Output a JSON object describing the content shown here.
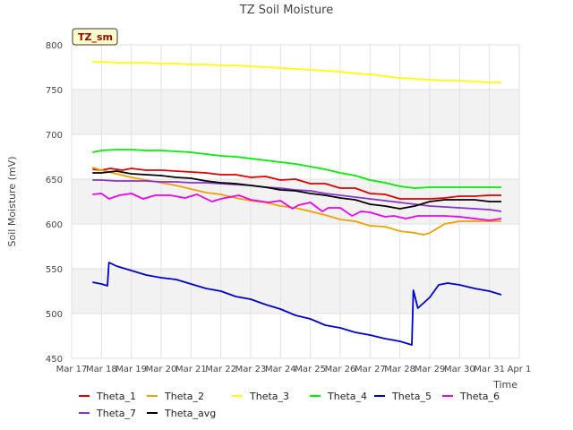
{
  "chart_data": {
    "type": "line",
    "title": "TZ Soil Moisture",
    "xlabel": "Time",
    "ylabel": "Soil Moisture (mV)",
    "badge": "TZ_sm",
    "ylim": [
      450,
      800
    ],
    "xlim": [
      0,
      15
    ],
    "yticks": [
      450,
      500,
      550,
      600,
      650,
      700,
      750,
      800
    ],
    "xticks": [
      {
        "v": 0,
        "label": "Mar 17"
      },
      {
        "v": 1,
        "label": "Mar 18"
      },
      {
        "v": 2,
        "label": "Mar 19"
      },
      {
        "v": 3,
        "label": "Mar 20"
      },
      {
        "v": 4,
        "label": "Mar 21"
      },
      {
        "v": 5,
        "label": "Mar 22"
      },
      {
        "v": 6,
        "label": "Mar 23"
      },
      {
        "v": 7,
        "label": "Mar 24"
      },
      {
        "v": 8,
        "label": "Mar 25"
      },
      {
        "v": 9,
        "label": "Mar 26"
      },
      {
        "v": 10,
        "label": "Mar 27"
      },
      {
        "v": 11,
        "label": "Mar 28"
      },
      {
        "v": 12,
        "label": "Mar 29"
      },
      {
        "v": 13,
        "label": "Mar 30"
      },
      {
        "v": 14,
        "label": "Mar 31"
      },
      {
        "v": 15,
        "label": "Apr 1"
      }
    ],
    "series": [
      {
        "name": "Theta_1",
        "color": "#dd0000",
        "x": [
          0.7,
          1.0,
          1.3,
          1.7,
          2.0,
          2.5,
          3.0,
          3.5,
          4.0,
          4.5,
          5.0,
          5.5,
          6.0,
          6.5,
          7.0,
          7.5,
          8.0,
          8.5,
          9.0,
          9.5,
          10.0,
          10.5,
          11.0,
          11.5,
          12.0,
          12.5,
          13.0,
          13.5,
          14.0,
          14.4
        ],
        "y": [
          661,
          660,
          662,
          660,
          662,
          660,
          660,
          659,
          658,
          657,
          655,
          655,
          652,
          653,
          649,
          650,
          645,
          645,
          640,
          640,
          634,
          633,
          628,
          628,
          628,
          629,
          631,
          631,
          632,
          632
        ]
      },
      {
        "name": "Theta_2",
        "color": "#f0a000",
        "x": [
          0.7,
          1.0,
          1.5,
          2.0,
          2.5,
          3.0,
          3.5,
          4.0,
          4.5,
          5.0,
          5.5,
          6.0,
          6.5,
          7.0,
          7.5,
          8.0,
          8.5,
          9.0,
          9.5,
          10.0,
          10.5,
          11.0,
          11.5,
          11.8,
          12.0,
          12.5,
          13.0,
          13.5,
          14.0,
          14.4
        ],
        "y": [
          663,
          660,
          656,
          652,
          649,
          646,
          643,
          639,
          635,
          633,
          629,
          626,
          624,
          620,
          618,
          614,
          610,
          605,
          603,
          598,
          597,
          592,
          590,
          588,
          590,
          600,
          603,
          603,
          603,
          603
        ]
      },
      {
        "name": "Theta_3",
        "color": "#ffff00",
        "x": [
          0.7,
          1.0,
          1.5,
          2.0,
          2.5,
          3.0,
          3.5,
          4.0,
          4.5,
          5.0,
          5.5,
          6.0,
          6.5,
          7.0,
          7.5,
          8.0,
          8.5,
          9.0,
          9.5,
          10.0,
          10.5,
          11.0,
          11.5,
          12.0,
          12.5,
          13.0,
          13.5,
          14.0,
          14.4
        ],
        "y": [
          781,
          781,
          780,
          780,
          780,
          779,
          779,
          778,
          778,
          777,
          777,
          776,
          775,
          774,
          773,
          772,
          771,
          770,
          768,
          767,
          765,
          763,
          762,
          761,
          760,
          760,
          759,
          758,
          758
        ]
      },
      {
        "name": "Theta_4",
        "color": "#00ee00",
        "x": [
          0.7,
          1.0,
          1.5,
          2.0,
          2.5,
          3.0,
          3.5,
          4.0,
          4.5,
          5.0,
          5.5,
          6.0,
          6.5,
          7.0,
          7.5,
          8.0,
          8.5,
          9.0,
          9.5,
          10.0,
          10.5,
          11.0,
          11.5,
          12.0,
          12.5,
          13.0,
          13.5,
          14.0,
          14.4
        ],
        "y": [
          680,
          682,
          683,
          683,
          682,
          682,
          681,
          680,
          678,
          676,
          675,
          673,
          671,
          669,
          667,
          664,
          661,
          657,
          654,
          649,
          646,
          642,
          640,
          641,
          641,
          641,
          641,
          641,
          641
        ]
      },
      {
        "name": "Theta_5",
        "color": "#0000cc",
        "x": [
          0.7,
          1.0,
          1.2,
          1.25,
          1.5,
          2.0,
          2.5,
          3.0,
          3.5,
          4.0,
          4.5,
          5.0,
          5.5,
          6.0,
          6.5,
          7.0,
          7.5,
          8.0,
          8.5,
          9.0,
          9.5,
          10.0,
          10.5,
          11.0,
          11.4,
          11.45,
          11.6,
          12.0,
          12.3,
          12.6,
          13.0,
          13.5,
          14.0,
          14.4
        ],
        "y": [
          535,
          533,
          531,
          557,
          553,
          548,
          543,
          540,
          538,
          533,
          528,
          525,
          519,
          516,
          510,
          505,
          498,
          494,
          487,
          484,
          479,
          476,
          472,
          469,
          465,
          526,
          506,
          518,
          532,
          534,
          532,
          528,
          525,
          521
        ]
      },
      {
        "name": "Theta_6",
        "color": "#ee00ee",
        "x": [
          0.7,
          1.0,
          1.25,
          1.6,
          2.0,
          2.4,
          2.8,
          3.3,
          3.8,
          4.2,
          4.7,
          5.0,
          5.6,
          6.0,
          6.6,
          7.0,
          7.4,
          7.6,
          8.0,
          8.4,
          8.6,
          9.0,
          9.4,
          9.7,
          10.0,
          10.5,
          10.8,
          11.2,
          11.6,
          12.0,
          12.5,
          13.0,
          13.5,
          14.0,
          14.4
        ],
        "y": [
          633,
          634,
          628,
          632,
          634,
          628,
          632,
          632,
          629,
          633,
          625,
          628,
          632,
          627,
          624,
          626,
          617,
          621,
          624,
          614,
          618,
          618,
          609,
          614,
          613,
          608,
          609,
          606,
          609,
          609,
          609,
          608,
          606,
          604,
          606
        ]
      },
      {
        "name": "Theta_7",
        "color": "#8833cc",
        "x": [
          0.7,
          1.0,
          1.5,
          2.0,
          2.5,
          3.0,
          3.5,
          4.0,
          4.5,
          5.0,
          5.5,
          6.0,
          6.5,
          7.0,
          7.5,
          8.0,
          8.5,
          9.0,
          9.5,
          10.0,
          10.5,
          11.0,
          11.5,
          12.0,
          12.5,
          13.0,
          13.5,
          14.0,
          14.4
        ],
        "y": [
          649,
          649,
          648,
          648,
          648,
          647,
          647,
          646,
          646,
          645,
          644,
          643,
          641,
          640,
          638,
          637,
          634,
          632,
          630,
          628,
          626,
          624,
          622,
          620,
          619,
          618,
          617,
          616,
          614
        ]
      },
      {
        "name": "Theta_avg",
        "color": "#000000",
        "x": [
          0.7,
          1.0,
          1.5,
          2.0,
          2.5,
          3.0,
          3.5,
          4.0,
          4.5,
          5.0,
          5.5,
          6.0,
          6.5,
          7.0,
          7.5,
          8.0,
          8.5,
          9.0,
          9.5,
          10.0,
          10.5,
          11.0,
          11.5,
          12.0,
          12.5,
          13.0,
          13.5,
          14.0,
          14.4
        ],
        "y": [
          657,
          657,
          659,
          656,
          655,
          654,
          652,
          651,
          648,
          646,
          645,
          643,
          641,
          638,
          637,
          634,
          632,
          629,
          627,
          622,
          620,
          617,
          620,
          625,
          627,
          627,
          627,
          625,
          625
        ]
      }
    ]
  }
}
